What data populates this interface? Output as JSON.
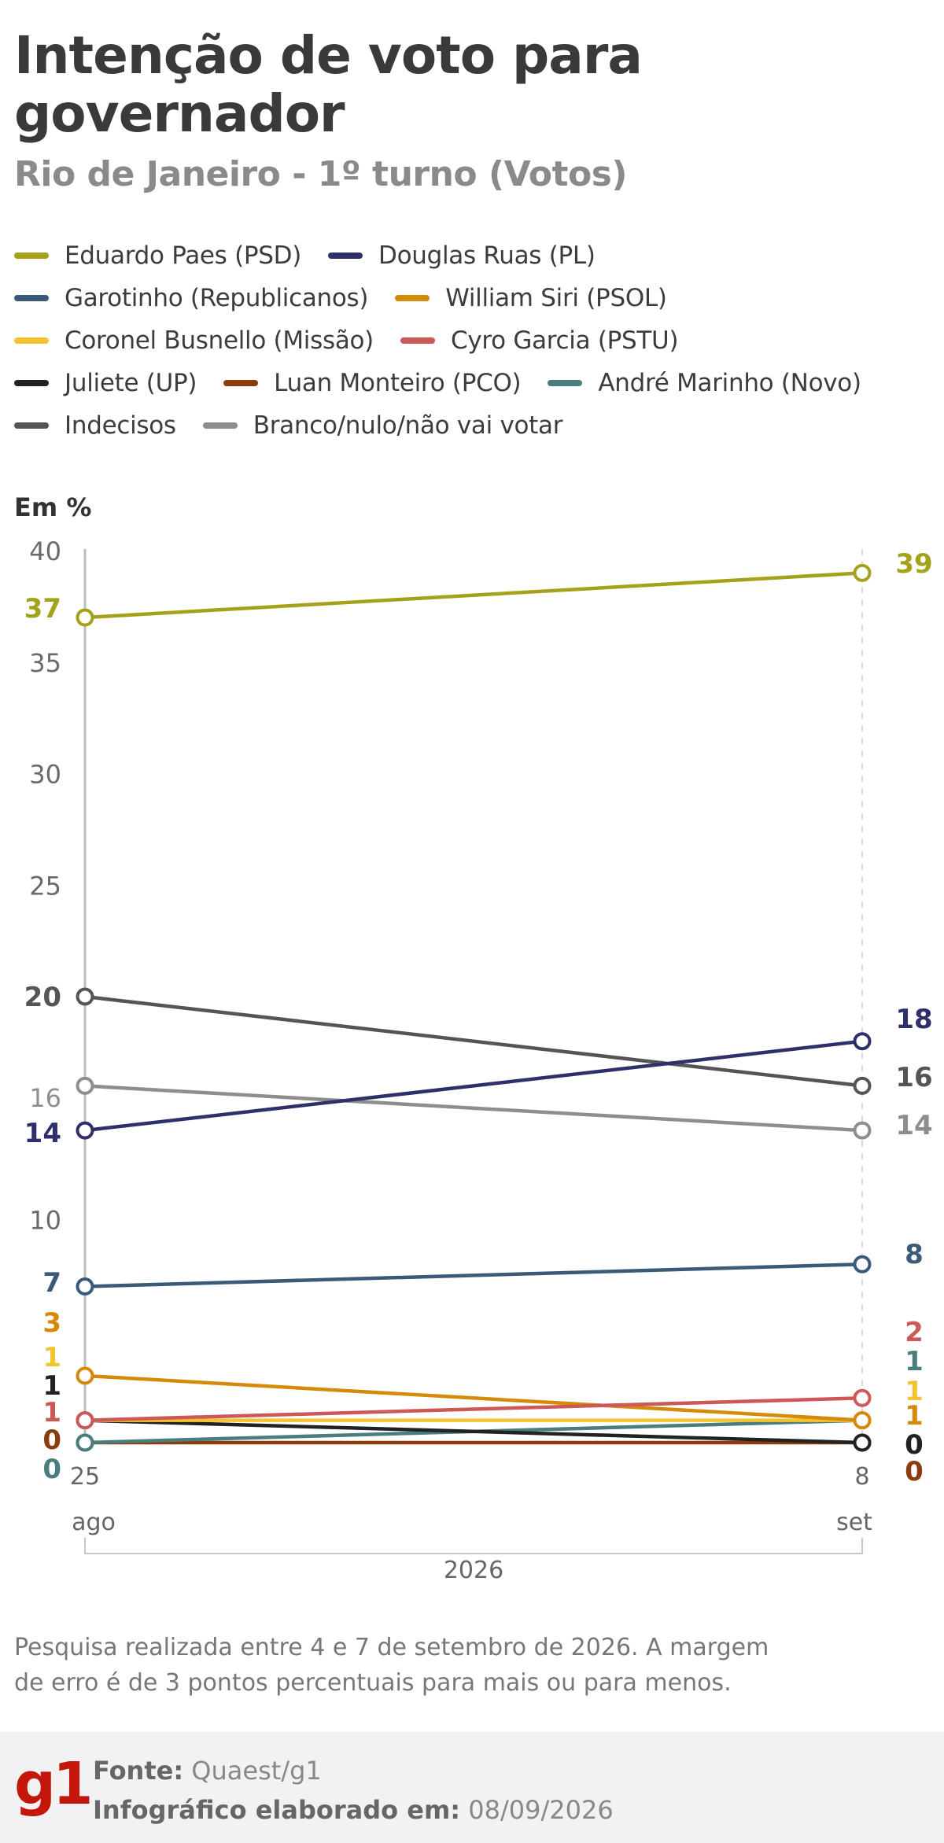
{
  "header": {
    "title": "Intenção de voto para governador",
    "subtitle": "Rio de Janeiro - 1º turno (Votos)"
  },
  "legend_rows": [
    [
      0,
      1
    ],
    [
      2,
      3
    ],
    [
      4,
      5
    ],
    [
      6,
      7,
      8
    ],
    [
      9,
      10
    ]
  ],
  "chart_data": {
    "type": "line",
    "unit_label": "Em %",
    "x": [
      "25 ago",
      "8 set"
    ],
    "x_tick_days": [
      "25",
      "8"
    ],
    "x_tick_months": [
      "ago",
      "set"
    ],
    "year_label": "2026",
    "y_ticks": [
      10,
      25,
      30,
      35,
      40
    ],
    "ylim": [
      0,
      40
    ],
    "series": [
      {
        "name": "Eduardo Paes (PSD)",
        "color": "#a4a21b",
        "values": [
          37,
          39
        ],
        "labels": [
          "37",
          "39"
        ]
      },
      {
        "name": "Douglas Ruas (PL)",
        "color": "#2e2f6b",
        "values": [
          14,
          18
        ],
        "labels": [
          "14",
          "18"
        ]
      },
      {
        "name": "Garotinho (Republicanos)",
        "color": "#3b5a7a",
        "values": [
          7,
          8
        ],
        "labels": [
          "7",
          "8"
        ]
      },
      {
        "name": "William Siri (PSOL)",
        "color": "#d68a0c",
        "values": [
          3,
          1
        ],
        "labels": [
          "3",
          "1"
        ]
      },
      {
        "name": "Coronel Busnello (Missão)",
        "color": "#f4c430",
        "values": [
          1,
          1
        ],
        "labels": [
          "1",
          "1"
        ]
      },
      {
        "name": "Cyro Garcia (PSTU)",
        "color": "#cc5858",
        "values": [
          1,
          2
        ],
        "labels": [
          "1",
          "2"
        ]
      },
      {
        "name": "Juliete (UP)",
        "color": "#222222",
        "values": [
          1,
          0
        ],
        "labels": [
          "1",
          "0"
        ]
      },
      {
        "name": "Luan Monteiro (PCO)",
        "color": "#8b3c0e",
        "values": [
          0,
          0
        ],
        "labels": [
          "0",
          "0"
        ]
      },
      {
        "name": "André Marinho (Novo)",
        "color": "#4a7d7d",
        "values": [
          0,
          1
        ],
        "labels": [
          "0",
          "1"
        ]
      },
      {
        "name": "Indecisos",
        "color": "#555555",
        "values": [
          20,
          16
        ],
        "labels": [
          "20",
          "16"
        ]
      },
      {
        "name": "Branco/nulo/não vai votar",
        "color": "#8e8e8e",
        "values": [
          16,
          14
        ],
        "labels": [
          "16",
          "14"
        ]
      }
    ]
  },
  "note": {
    "text": "Pesquisa realizada entre 4 e 7 de setembro de 2026. A margem de erro é de 3 pontos percentuais para mais ou para menos."
  },
  "footer": {
    "logo": "g1",
    "source_label": "Fonte:",
    "source_value": "Quaest/g1",
    "date_label": "Infográfico elaborado em:",
    "date_value": "08/09/2026"
  }
}
